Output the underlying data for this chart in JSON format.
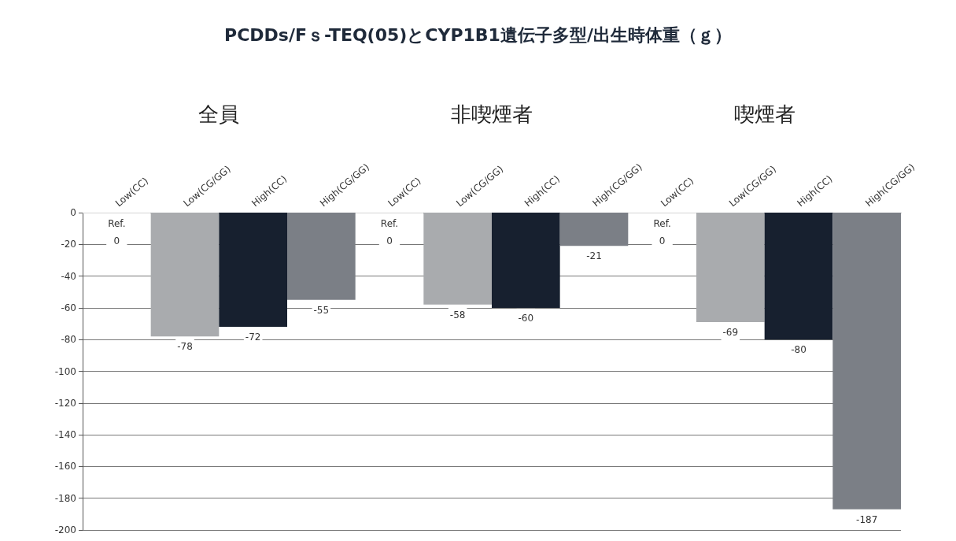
{
  "chart_data": {
    "type": "bar",
    "title": "PCDDs/Fｓ-TEQ(05)とCYP1B1遺伝子多型/出生時体重（ｇ）",
    "annotations": [
      "全員",
      "非喫煙者",
      "喫煙者"
    ],
    "categories": [
      "Low(CC)",
      "Low(CG/GG)",
      "High(CC)",
      "High(CG/GG)",
      "Low(CC)",
      "Low(CG/GG)",
      "High(CC)",
      "High(CG/GG)",
      "Low(CC)",
      "Low(CG/GG)",
      "High(CC)",
      "High(CG/GG)"
    ],
    "values": [
      0,
      -78,
      -72,
      -55,
      0,
      -58,
      -60,
      -21,
      0,
      -69,
      -80,
      -187
    ],
    "colors": [
      "#ffffff",
      "#a9abae",
      "#17202f",
      "#7b7f86",
      "#ffffff",
      "#a9abae",
      "#17202f",
      "#7b7f86",
      "#ffffff",
      "#a9abae",
      "#17202f",
      "#7b7f86"
    ],
    "value_labels": [
      "Ref.\n0",
      "-78",
      "-72",
      "-55",
      "Ref.\n0",
      "-58",
      "-60",
      "-21",
      "Ref.\n0",
      "-69",
      "-80",
      "-187"
    ],
    "ylim": [
      -200,
      0
    ],
    "yticks": [
      -200,
      -180,
      -160,
      -140,
      -120,
      -100,
      -80,
      -60,
      -40,
      -20,
      0
    ],
    "grid": "y"
  }
}
